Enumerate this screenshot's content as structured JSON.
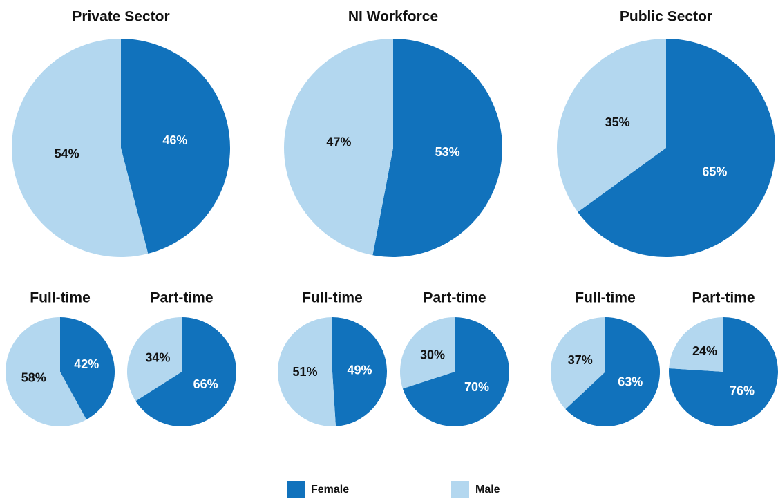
{
  "legend": {
    "labels": [
      "Female",
      "Male"
    ],
    "colors": [
      "#1172bc",
      "#b3d7ef"
    ]
  },
  "chart_data": [
    {
      "type": "pie",
      "title": "Private Sector",
      "values": [
        46,
        54
      ],
      "value_labels": [
        "46%",
        "54%"
      ]
    },
    {
      "type": "pie",
      "title": "NI Workforce",
      "values": [
        53,
        47
      ],
      "value_labels": [
        "53%",
        "47%"
      ]
    },
    {
      "type": "pie",
      "title": "Public Sector",
      "values": [
        65,
        35
      ],
      "value_labels": [
        "65%",
        "35%"
      ]
    },
    {
      "type": "pie",
      "title": "Full-time",
      "values": [
        42,
        58
      ],
      "value_labels": [
        "42%",
        "58%"
      ]
    },
    {
      "type": "pie",
      "title": "Part-time",
      "values": [
        66,
        34
      ],
      "value_labels": [
        "66%",
        "34%"
      ]
    },
    {
      "type": "pie",
      "title": "Full-time",
      "values": [
        49,
        51
      ],
      "value_labels": [
        "49%",
        "51%"
      ]
    },
    {
      "type": "pie",
      "title": "Part-time",
      "values": [
        70,
        30
      ],
      "value_labels": [
        "70%",
        "30%"
      ]
    },
    {
      "type": "pie",
      "title": "Full-time",
      "values": [
        63,
        37
      ],
      "value_labels": [
        "63%",
        "37%"
      ]
    },
    {
      "type": "pie",
      "title": "Part-time",
      "values": [
        76,
        24
      ],
      "value_labels": [
        "76%",
        "24%"
      ]
    }
  ]
}
